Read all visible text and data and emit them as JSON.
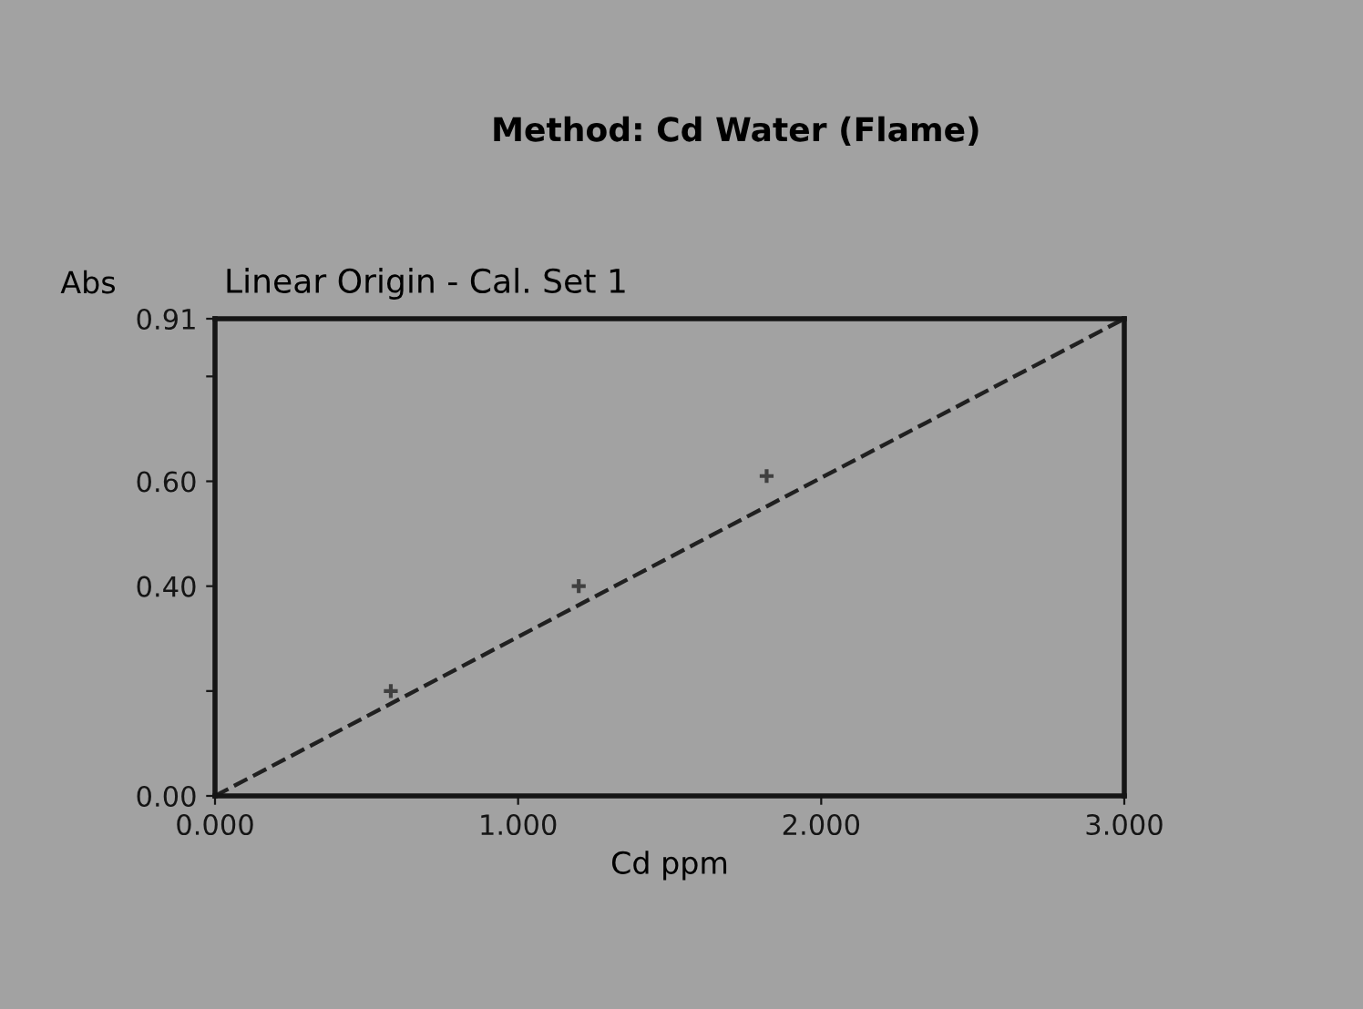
{
  "chart_data": {
    "type": "line",
    "title": "Method: Cd Water (Flame)",
    "subtitle": "Linear Origin - Cal. Set 1",
    "xlabel": "Cd ppm",
    "ylabel": "Abs",
    "xlim": [
      0,
      3.0
    ],
    "xticks": [
      {
        "value": 0,
        "label": "0.000"
      },
      {
        "value": 1,
        "label": "1.000"
      },
      {
        "value": 2,
        "label": "2.000"
      },
      {
        "value": 3,
        "label": "3.000"
      }
    ],
    "ylim": [
      0,
      0.91
    ],
    "yticks": [
      {
        "value": 0,
        "label": "0.00"
      },
      {
        "value": 0.2,
        "label": null
      },
      {
        "value": 0.4,
        "label": "0.40"
      },
      {
        "value": 0.6,
        "label": "0.60"
      },
      {
        "value": 0.8,
        "label": null
      },
      {
        "value": 0.91,
        "label": "0.91"
      }
    ],
    "grid": false,
    "legend": false,
    "series": [
      {
        "color": "#202020",
        "x": [
          0,
          3.0
        ],
        "values": [
          0,
          0.91
        ],
        "line_style": "dashed"
      },
      {
        "type": "scatter",
        "color": "#404040",
        "x": [
          0.58,
          1.2,
          1.82
        ],
        "values": [
          0.2,
          0.4,
          0.61
        ],
        "marker": "cross"
      }
    ]
  }
}
